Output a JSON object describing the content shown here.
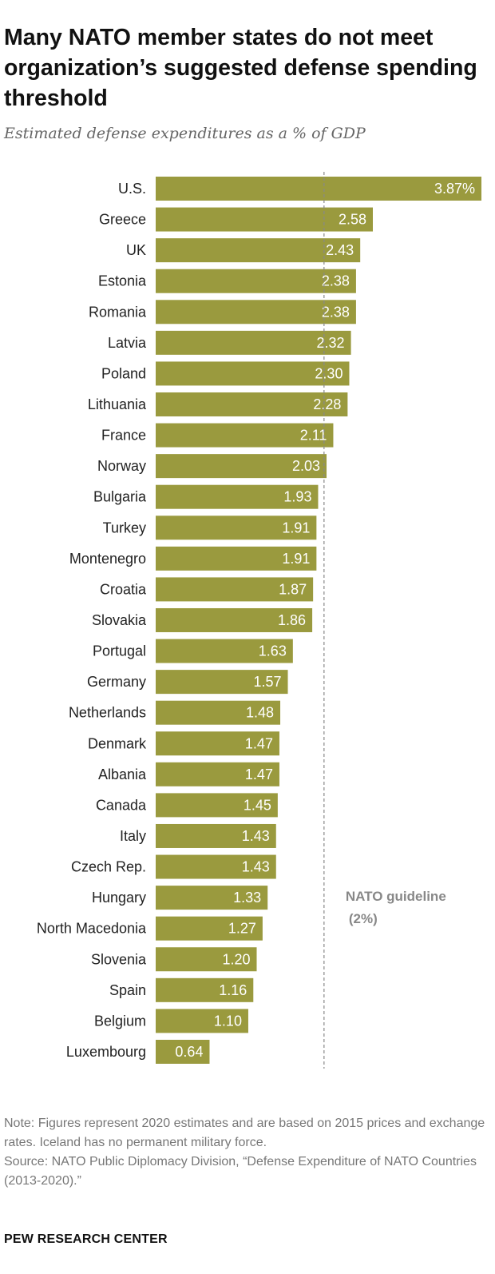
{
  "title": "Many NATO member states do not meet organization’s suggested defense spending threshold",
  "subtitle": "Estimated defense expenditures as a % of GDP",
  "chart_data": {
    "type": "bar",
    "orientation": "horizontal",
    "categories": [
      "U.S.",
      "Greece",
      "UK",
      "Estonia",
      "Romania",
      "Latvia",
      "Poland",
      "Lithuania",
      "France",
      "Norway",
      "Bulgaria",
      "Turkey",
      "Montenegro",
      "Croatia",
      "Slovakia",
      "Portugal",
      "Germany",
      "Netherlands",
      "Denmark",
      "Albania",
      "Canada",
      "Italy",
      "Czech Rep.",
      "Hungary",
      "North Macedonia",
      "Slovenia",
      "Spain",
      "Belgium",
      "Luxembourg"
    ],
    "values": [
      3.87,
      2.58,
      2.43,
      2.38,
      2.38,
      2.32,
      2.3,
      2.28,
      2.11,
      2.03,
      1.93,
      1.91,
      1.91,
      1.87,
      1.86,
      1.63,
      1.57,
      1.48,
      1.47,
      1.47,
      1.45,
      1.43,
      1.43,
      1.33,
      1.27,
      1.2,
      1.16,
      1.1,
      0.64
    ],
    "value_labels": [
      "3.87%",
      "2.58",
      "2.43",
      "2.38",
      "2.38",
      "2.32",
      "2.30",
      "2.28",
      "2.11",
      "2.03",
      "1.93",
      "1.91",
      "1.91",
      "1.87",
      "1.86",
      "1.63",
      "1.57",
      "1.48",
      "1.47",
      "1.47",
      "1.45",
      "1.43",
      "1.43",
      "1.33",
      "1.27",
      "1.20",
      "1.16",
      "1.10",
      "0.64"
    ],
    "xlim": [
      0,
      3.87
    ],
    "bar_color": "#9a9a3e",
    "reference_line": {
      "value": 2,
      "label_line1": "NATO guideline",
      "label_line2": "(2%)",
      "color": "#888888"
    },
    "grid": false,
    "legend": "none"
  },
  "note": "Note: Figures represent 2020 estimates and are based on 2015 prices and exchange rates. Iceland has no permanent military force.",
  "source": "Source: NATO Public Diplomacy Division, “Defense Expenditure of NATO Countries (2013-2020).”",
  "brand": "PEW RESEARCH CENTER"
}
